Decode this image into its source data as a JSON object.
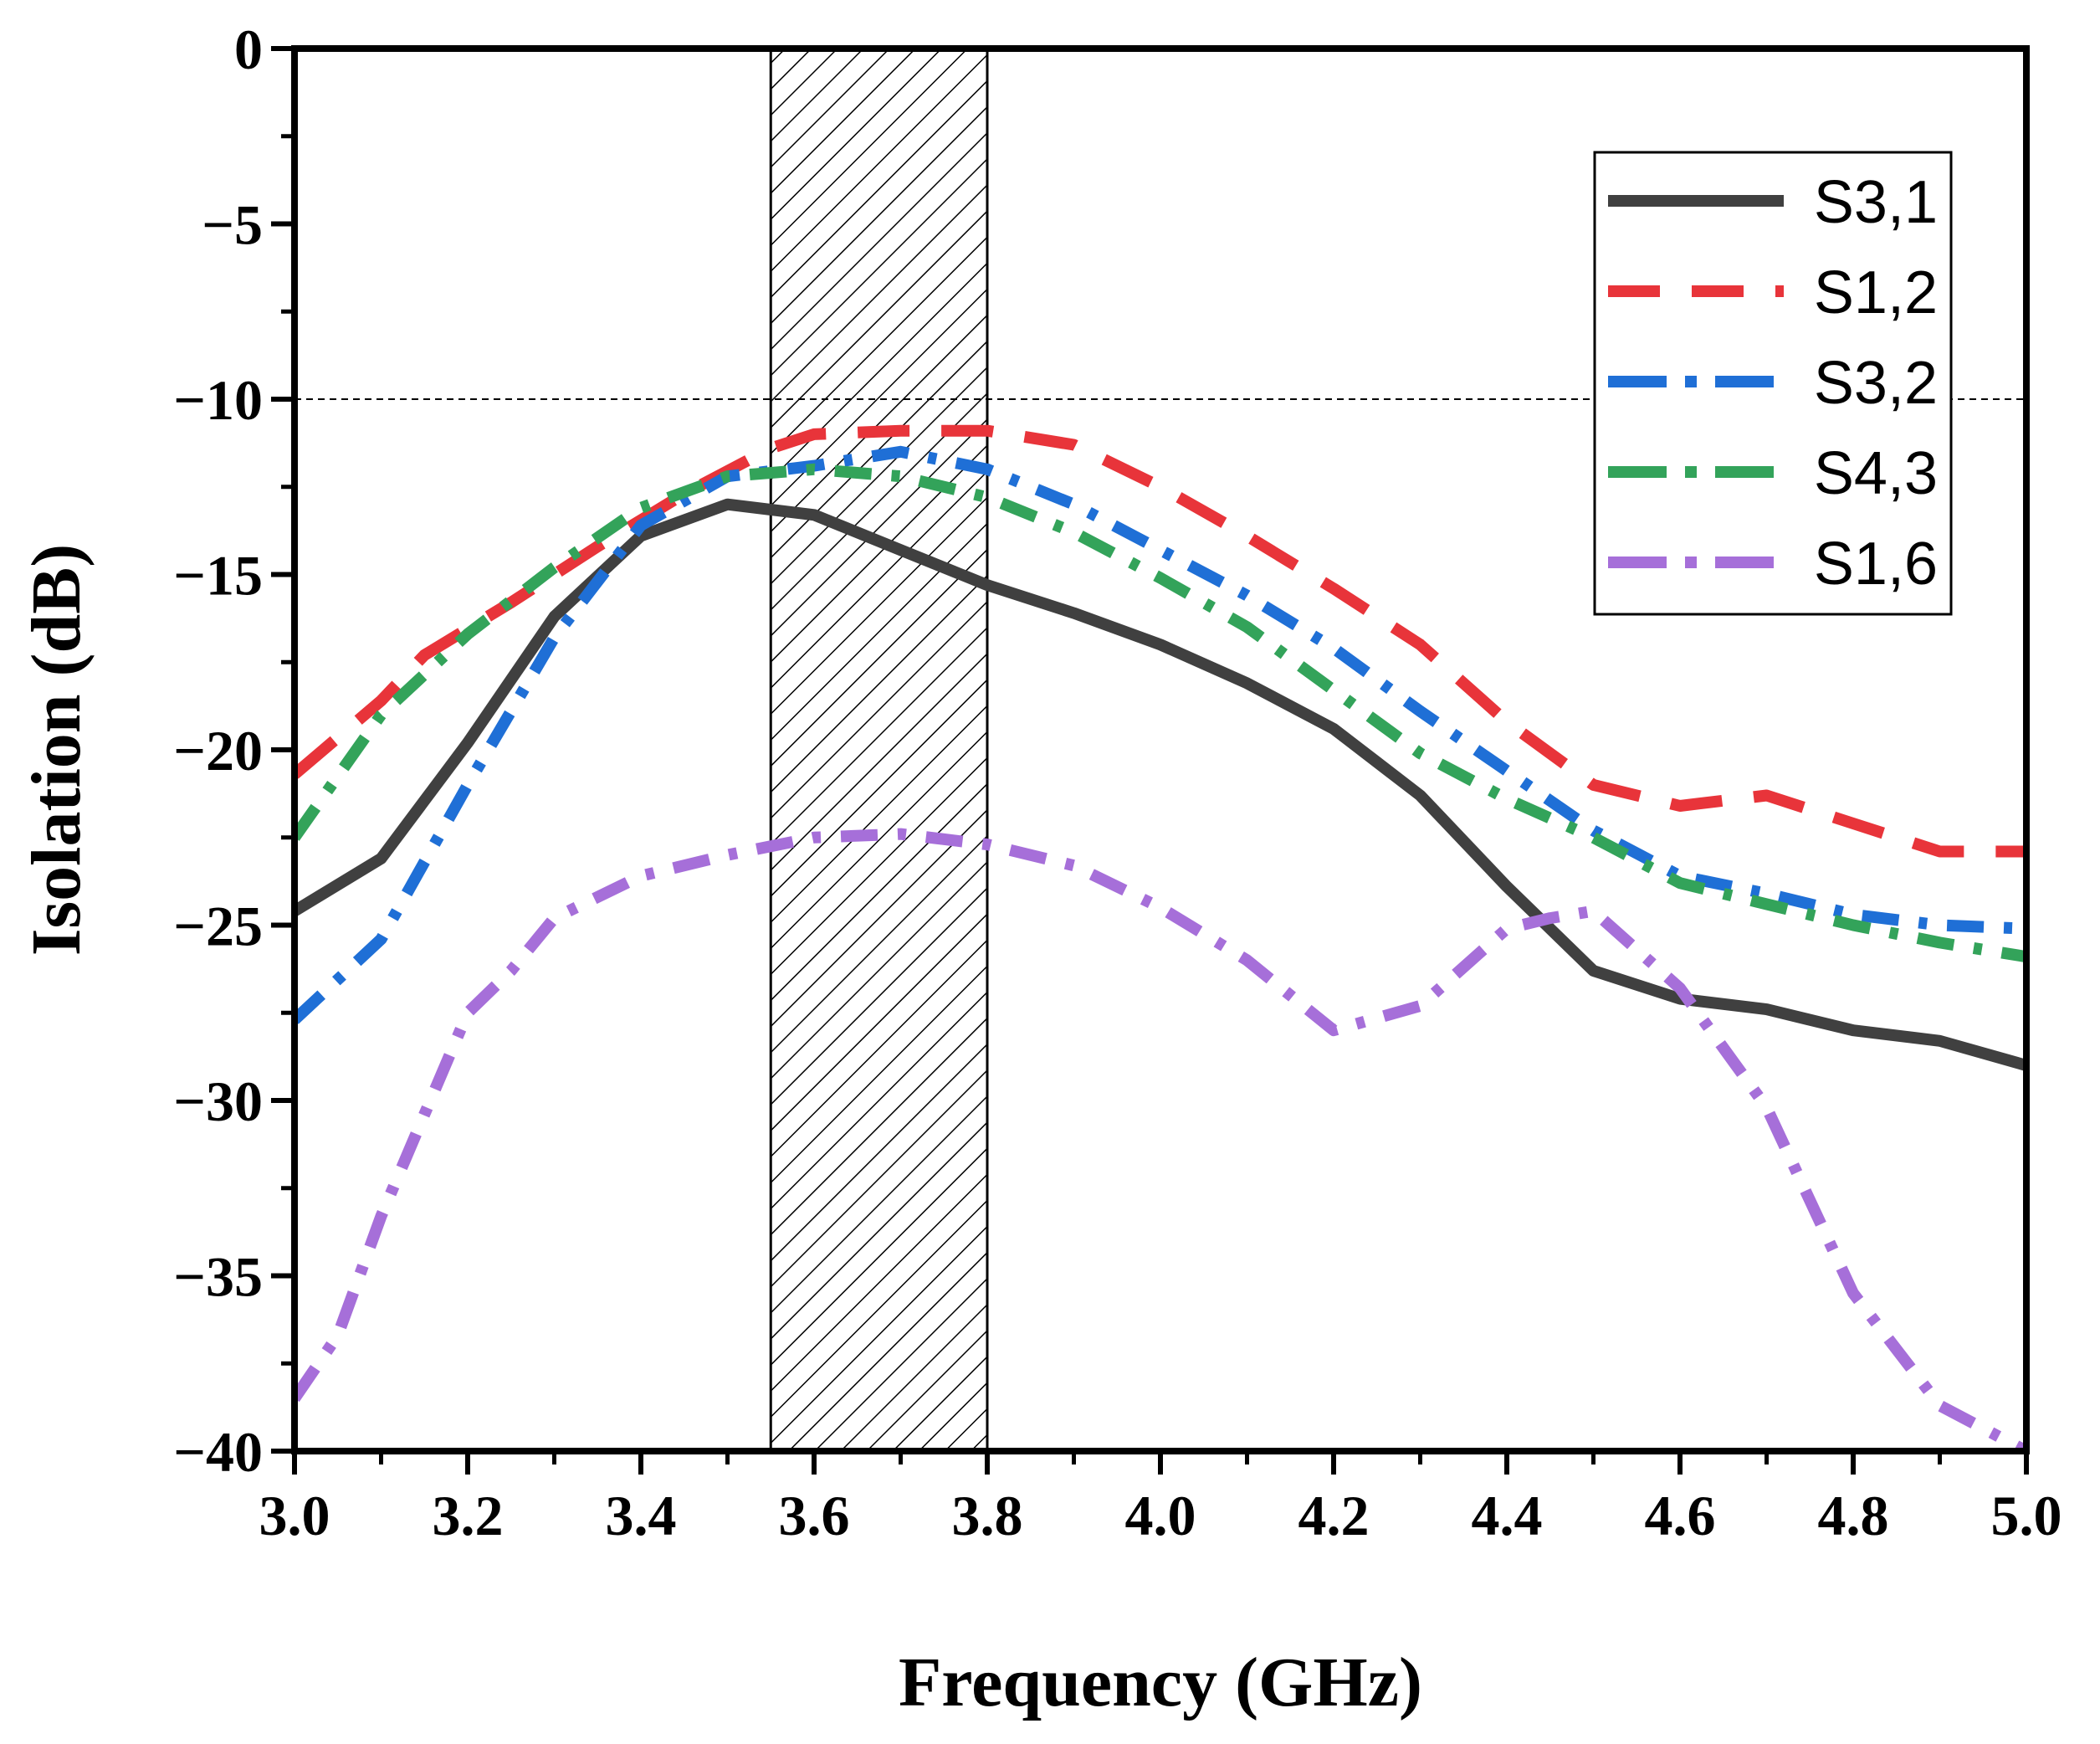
{
  "chart_data": {
    "type": "line",
    "title": "",
    "xlabel": "Frequency (GHz)",
    "ylabel": "Isolation (dB)",
    "xlim": [
      3.0,
      5.0
    ],
    "ylim": [
      -40,
      0
    ],
    "xticks": [
      3.0,
      3.2,
      3.4,
      3.6,
      3.8,
      4.0,
      4.2,
      4.4,
      4.6,
      4.8,
      5.0
    ],
    "xtick_labels": [
      "3.0",
      "3.2",
      "3.4",
      "3.6",
      "3.8",
      "4.0",
      "4.2",
      "4.4",
      "4.6",
      "4.8",
      "5.0"
    ],
    "yticks": [
      0,
      -5,
      -10,
      -15,
      -20,
      -25,
      -30,
      -35,
      -40
    ],
    "ytick_labels": [
      "0",
      "−5",
      "−10",
      "−15",
      "−20",
      "−25",
      "−30",
      "−35",
      "−40"
    ],
    "grid": false,
    "legend_position": "top-right",
    "reference_line": {
      "y": -10,
      "style": "dashed"
    },
    "shaded_band": {
      "x_start": 3.55,
      "x_end": 3.8,
      "pattern": "diagonal-hatch"
    },
    "series": [
      {
        "name": "S3,1",
        "color": "#404040",
        "style": "solid",
        "x": [
          3.0,
          3.1,
          3.2,
          3.3,
          3.4,
          3.5,
          3.6,
          3.7,
          3.8,
          3.9,
          4.0,
          4.1,
          4.2,
          4.3,
          4.4,
          4.5,
          4.6,
          4.7,
          4.8,
          4.9,
          5.0
        ],
        "y": [
          -24.6,
          -23.1,
          -19.8,
          -16.2,
          -13.9,
          -13.0,
          -13.3,
          -14.3,
          -15.3,
          -16.1,
          -17.0,
          -18.1,
          -19.4,
          -21.3,
          -23.9,
          -26.3,
          -27.1,
          -27.4,
          -28.0,
          -28.3,
          -29.0
        ]
      },
      {
        "name": "S1,2",
        "color": "#e8343a",
        "style": "long-dash",
        "x": [
          3.0,
          3.1,
          3.15,
          3.25,
          3.35,
          3.45,
          3.55,
          3.6,
          3.7,
          3.8,
          3.9,
          4.0,
          4.1,
          4.2,
          4.3,
          4.4,
          4.5,
          4.6,
          4.7,
          4.8,
          4.9,
          5.0
        ],
        "y": [
          -20.7,
          -18.6,
          -17.3,
          -15.8,
          -14.2,
          -12.7,
          -11.4,
          -11.0,
          -10.9,
          -10.9,
          -11.3,
          -12.5,
          -13.9,
          -15.4,
          -17.0,
          -19.2,
          -21.0,
          -21.6,
          -21.3,
          -22.1,
          -22.9,
          -22.9
        ]
      },
      {
        "name": "S3,2",
        "color": "#1f6fd6",
        "style": "dash-dot",
        "x": [
          3.0,
          3.1,
          3.2,
          3.3,
          3.4,
          3.5,
          3.6,
          3.7,
          3.8,
          3.9,
          4.0,
          4.1,
          4.2,
          4.3,
          4.4,
          4.5,
          4.6,
          4.7,
          4.8,
          4.9,
          5.0
        ],
        "y": [
          -27.7,
          -25.4,
          -21.0,
          -16.8,
          -13.6,
          -12.2,
          -11.9,
          -11.5,
          -12.0,
          -13.0,
          -14.3,
          -15.6,
          -17.1,
          -18.9,
          -20.6,
          -22.3,
          -23.6,
          -24.1,
          -24.7,
          -25.0,
          -25.1
        ]
      },
      {
        "name": "S4,3",
        "color": "#33a35a",
        "style": "dash-dot",
        "x": [
          3.0,
          3.1,
          3.2,
          3.3,
          3.4,
          3.5,
          3.6,
          3.7,
          3.8,
          3.9,
          4.0,
          4.1,
          4.2,
          4.3,
          4.4,
          4.5,
          4.6,
          4.7,
          4.8,
          4.9,
          5.0
        ],
        "y": [
          -22.5,
          -19.0,
          -16.7,
          -14.8,
          -13.1,
          -12.2,
          -12.0,
          -12.2,
          -12.8,
          -13.8,
          -15.1,
          -16.5,
          -18.3,
          -20.1,
          -21.4,
          -22.5,
          -23.8,
          -24.4,
          -25.0,
          -25.5,
          -25.9
        ]
      },
      {
        "name": "S1,6",
        "color": "#a66fd9",
        "style": "dash-dot",
        "x": [
          3.0,
          3.05,
          3.1,
          3.15,
          3.2,
          3.25,
          3.3,
          3.4,
          3.5,
          3.6,
          3.7,
          3.8,
          3.9,
          4.0,
          4.1,
          4.2,
          4.3,
          4.4,
          4.45,
          4.5,
          4.6,
          4.7,
          4.8,
          4.9,
          5.0
        ],
        "y": [
          -38.5,
          -36.7,
          -33.3,
          -30.4,
          -27.5,
          -26.3,
          -24.8,
          -23.6,
          -23.0,
          -22.5,
          -22.4,
          -22.7,
          -23.3,
          -24.5,
          -26.0,
          -28.0,
          -27.3,
          -25.1,
          -24.8,
          -24.6,
          -26.8,
          -30.2,
          -35.5,
          -38.7,
          -40.0
        ]
      }
    ]
  }
}
